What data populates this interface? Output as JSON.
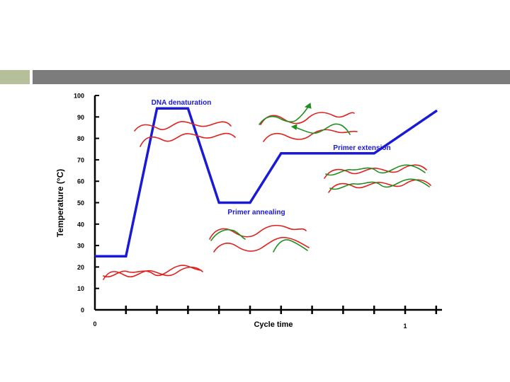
{
  "slide": {
    "accent_color": "#b5c09a",
    "bar_color": "#7c7c7c"
  },
  "chart_data": {
    "type": "line",
    "ylabel": "Temperature (°C)",
    "xlabel": "Cycle time",
    "ylim": [
      0,
      100
    ],
    "yticks": [
      "100",
      "90",
      "80",
      "70",
      "60",
      "50",
      "40",
      "30",
      "20",
      "10",
      "0"
    ],
    "xtick_labels": [
      "0",
      "1"
    ],
    "series": [
      {
        "color": "#1a1ad6",
        "points": [
          [
            0,
            25
          ],
          [
            0.1,
            25
          ],
          [
            0.2,
            94
          ],
          [
            0.3,
            94
          ],
          [
            0.4,
            50
          ],
          [
            0.5,
            50
          ],
          [
            0.6,
            73
          ],
          [
            0.9,
            73
          ],
          [
            1.0,
            93
          ]
        ]
      }
    ],
    "annotations": [
      "DNA denaturation",
      "Primer annealing",
      "Primer extension"
    ],
    "strand_colors": {
      "template": "#e0201c",
      "primer": "#1f8f1f"
    }
  }
}
